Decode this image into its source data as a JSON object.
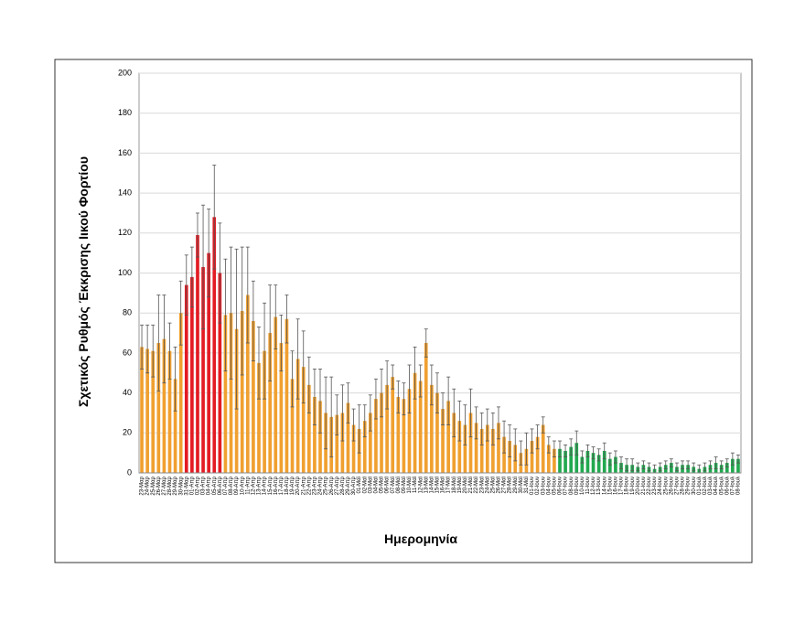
{
  "chart_data": {
    "type": "bar",
    "y_label": "Σχετικός Ρυθμός Έκκρισης Ιικού Φορτίου",
    "x_label": "Ημερομηνία",
    "ylim": [
      0,
      200
    ],
    "yticks": [
      0,
      20,
      40,
      60,
      80,
      100,
      120,
      140,
      160,
      180,
      200
    ],
    "grid": true,
    "categories": [
      "23-Μαρ",
      "24-Μαρ",
      "25-Μαρ",
      "26-Μαρ",
      "27-Μαρ",
      "28-Μαρ",
      "29-Μαρ",
      "30-Μαρ",
      "31-Μαρ",
      "01-Απρ",
      "02-Απρ",
      "03-Απρ",
      "04-Απρ",
      "05-Απρ",
      "06-Απρ",
      "07-Απρ",
      "08-Απρ",
      "09-Απρ",
      "10-Απρ",
      "11-Απρ",
      "12-Απρ",
      "13-Απρ",
      "14-Απρ",
      "15-Απρ",
      "16-Απρ",
      "17-Απρ",
      "18-Απρ",
      "19-Απρ",
      "20-Απρ",
      "21-Απρ",
      "22-Απρ",
      "23-Απρ",
      "24-Απρ",
      "25-Απρ",
      "26-Απρ",
      "27-Απρ",
      "28-Απρ",
      "29-Απρ",
      "30-Απρ",
      "01-Μαϊ",
      "02-Μαϊ",
      "03-Μαϊ",
      "04-Μαϊ",
      "05-Μαϊ",
      "06-Μαϊ",
      "07-Μαϊ",
      "08-Μαϊ",
      "09-Μαϊ",
      "10-Μαϊ",
      "11-Μαϊ",
      "12-Μαϊ",
      "13-Μαϊ",
      "14-Μαϊ",
      "15-Μαϊ",
      "16-Μαϊ",
      "17-Μαϊ",
      "18-Μαϊ",
      "19-Μαϊ",
      "20-Μαϊ",
      "21-Μαϊ",
      "22-Μαϊ",
      "23-Μαϊ",
      "24-Μαϊ",
      "25-Μαϊ",
      "26-Μαϊ",
      "27-Μαϊ",
      "28-Μαϊ",
      "29-Μαϊ",
      "30-Μαϊ",
      "31-Μαϊ",
      "01-Ιουν",
      "02-Ιουν",
      "03-Ιουν",
      "04-Ιουν",
      "05-Ιουν",
      "06-Ιουν",
      "07-Ιουν",
      "08-Ιουν",
      "09-Ιουν",
      "10-Ιουν",
      "11-Ιουν",
      "12-Ιουν",
      "13-Ιουν",
      "14-Ιουν",
      "15-Ιουν",
      "16-Ιουν",
      "17-Ιουν",
      "18-Ιουν",
      "19-Ιουν",
      "20-Ιουν",
      "21-Ιουν",
      "22-Ιουν",
      "23-Ιουν",
      "24-Ιουν",
      "25-Ιουν",
      "26-Ιουν",
      "27-Ιουν",
      "28-Ιουν",
      "29-Ιουν",
      "30-Ιουν",
      "01-Ιουλ",
      "02-Ιουλ",
      "03-Ιουλ",
      "04-Ιουλ",
      "05-Ιουλ",
      "06-Ιουλ",
      "07-Ιουλ",
      "08-Ιουλ"
    ],
    "values": [
      63,
      62,
      61,
      65,
      67,
      61,
      47,
      80,
      94,
      98,
      119,
      103,
      110,
      128,
      100,
      79,
      80,
      72,
      81,
      89,
      76,
      55,
      61,
      70,
      78,
      65,
      77,
      47,
      57,
      53,
      44,
      38,
      36,
      30,
      28,
      29,
      30,
      35,
      24,
      22,
      26,
      30,
      37,
      40,
      44,
      48,
      38,
      37,
      42,
      50,
      46,
      65,
      44,
      40,
      32,
      36,
      30,
      26,
      24,
      30,
      25,
      22,
      24,
      22,
      25,
      18,
      16,
      14,
      10,
      12,
      16,
      18,
      24,
      14,
      12,
      12,
      11,
      13,
      15,
      8,
      11,
      10,
      9,
      11,
      7,
      8,
      5,
      4,
      4,
      3,
      4,
      3,
      2,
      3,
      4,
      5,
      3,
      4,
      4,
      3,
      2,
      3,
      4,
      5,
      4,
      5,
      7,
      7
    ],
    "errors": [
      11,
      12,
      13,
      24,
      22,
      14,
      16,
      16,
      15,
      15,
      11,
      31,
      22,
      26,
      25,
      28,
      33,
      40,
      32,
      24,
      20,
      18,
      24,
      24,
      16,
      14,
      12,
      14,
      20,
      18,
      14,
      14,
      16,
      18,
      20,
      10,
      14,
      10,
      8,
      12,
      8,
      9,
      10,
      12,
      12,
      6,
      8,
      8,
      12,
      13,
      8,
      7,
      10,
      10,
      8,
      12,
      12,
      10,
      10,
      12,
      8,
      8,
      8,
      8,
      8,
      8,
      8,
      8,
      6,
      8,
      6,
      6,
      4,
      4,
      4,
      4,
      3,
      4,
      6,
      3,
      3,
      3,
      3,
      4,
      3,
      3,
      3,
      3,
      3,
      2,
      2,
      2,
      2,
      2,
      2,
      2,
      2,
      2,
      2,
      2,
      2,
      2,
      2,
      3,
      2,
      2,
      3,
      2
    ],
    "colors": [
      "#f0a030",
      "#f0a030",
      "#f0a030",
      "#f0a030",
      "#f0a030",
      "#f0a030",
      "#f0a030",
      "#f0a030",
      "#e31b23",
      "#e31b23",
      "#e31b23",
      "#e31b23",
      "#e31b23",
      "#e31b23",
      "#e31b23",
      "#f0a030",
      "#f0a030",
      "#f0a030",
      "#f0a030",
      "#f0a030",
      "#f0a030",
      "#f0a030",
      "#f0a030",
      "#f0a030",
      "#f0a030",
      "#f0a030",
      "#f0a030",
      "#f0a030",
      "#f0a030",
      "#f0a030",
      "#f0a030",
      "#f0a030",
      "#f0a030",
      "#f0a030",
      "#f0a030",
      "#f0a030",
      "#f0a030",
      "#f0a030",
      "#f0a030",
      "#f0a030",
      "#f0a030",
      "#f0a030",
      "#f0a030",
      "#f0a030",
      "#f0a030",
      "#f0a030",
      "#f0a030",
      "#f0a030",
      "#f0a030",
      "#f0a030",
      "#f0a030",
      "#f0a030",
      "#f0a030",
      "#f0a030",
      "#f0a030",
      "#f0a030",
      "#f0a030",
      "#f0a030",
      "#f0a030",
      "#f0a030",
      "#f0a030",
      "#f0a030",
      "#f0a030",
      "#f0a030",
      "#f0a030",
      "#f0a030",
      "#f0a030",
      "#f0a030",
      "#f0a030",
      "#f0a030",
      "#f0a030",
      "#f0a030",
      "#f0a030",
      "#f0a030",
      "#f0a030",
      "#22a94f",
      "#22a94f",
      "#22a94f",
      "#22a94f",
      "#22a94f",
      "#22a94f",
      "#22a94f",
      "#22a94f",
      "#22a94f",
      "#22a94f",
      "#22a94f",
      "#22a94f",
      "#22a94f",
      "#22a94f",
      "#22a94f",
      "#22a94f",
      "#22a94f",
      "#22a94f",
      "#22a94f",
      "#22a94f",
      "#22a94f",
      "#22a94f",
      "#22a94f",
      "#22a94f",
      "#22a94f",
      "#22a94f",
      "#22a94f",
      "#22a94f",
      "#22a94f",
      "#22a94f",
      "#22a94f",
      "#22a94f",
      "#22a94f"
    ]
  }
}
